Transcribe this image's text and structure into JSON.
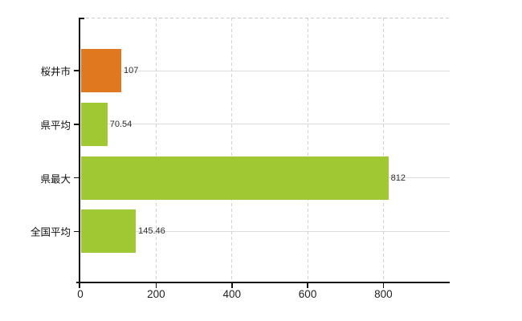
{
  "chart_data": {
    "type": "bar",
    "orientation": "horizontal",
    "title": "",
    "xlabel": "",
    "ylabel": "",
    "categories": [
      "桜井市",
      "県平均",
      "県最大",
      "全国平均"
    ],
    "values": [
      107,
      70.54,
      812,
      145.46
    ],
    "value_labels": [
      "107",
      "70.54",
      "812",
      "145.46"
    ],
    "bar_colors": [
      "#e0781f",
      "#a0c832",
      "#a0c832",
      "#a0c832"
    ],
    "xlim": [
      0,
      975
    ],
    "x_ticks": [
      0,
      200,
      400,
      600,
      800
    ],
    "x_tick_labels": [
      "0",
      "200",
      "400",
      "600",
      "800"
    ],
    "grid": {
      "vertical_style": "dashed",
      "horizontal_style": "solid",
      "vertical_color": "#d2d2d2",
      "horizontal_color": "#dcdcdc",
      "top_border_style": "dashed",
      "top_border_color": "#cbc7c7"
    },
    "legend": "none",
    "background_color": "#ffffff",
    "axis_color": "#141414",
    "category_label_color": "#111111",
    "value_label_color": "#2e2e2e",
    "tick_label_color": "#222222"
  }
}
